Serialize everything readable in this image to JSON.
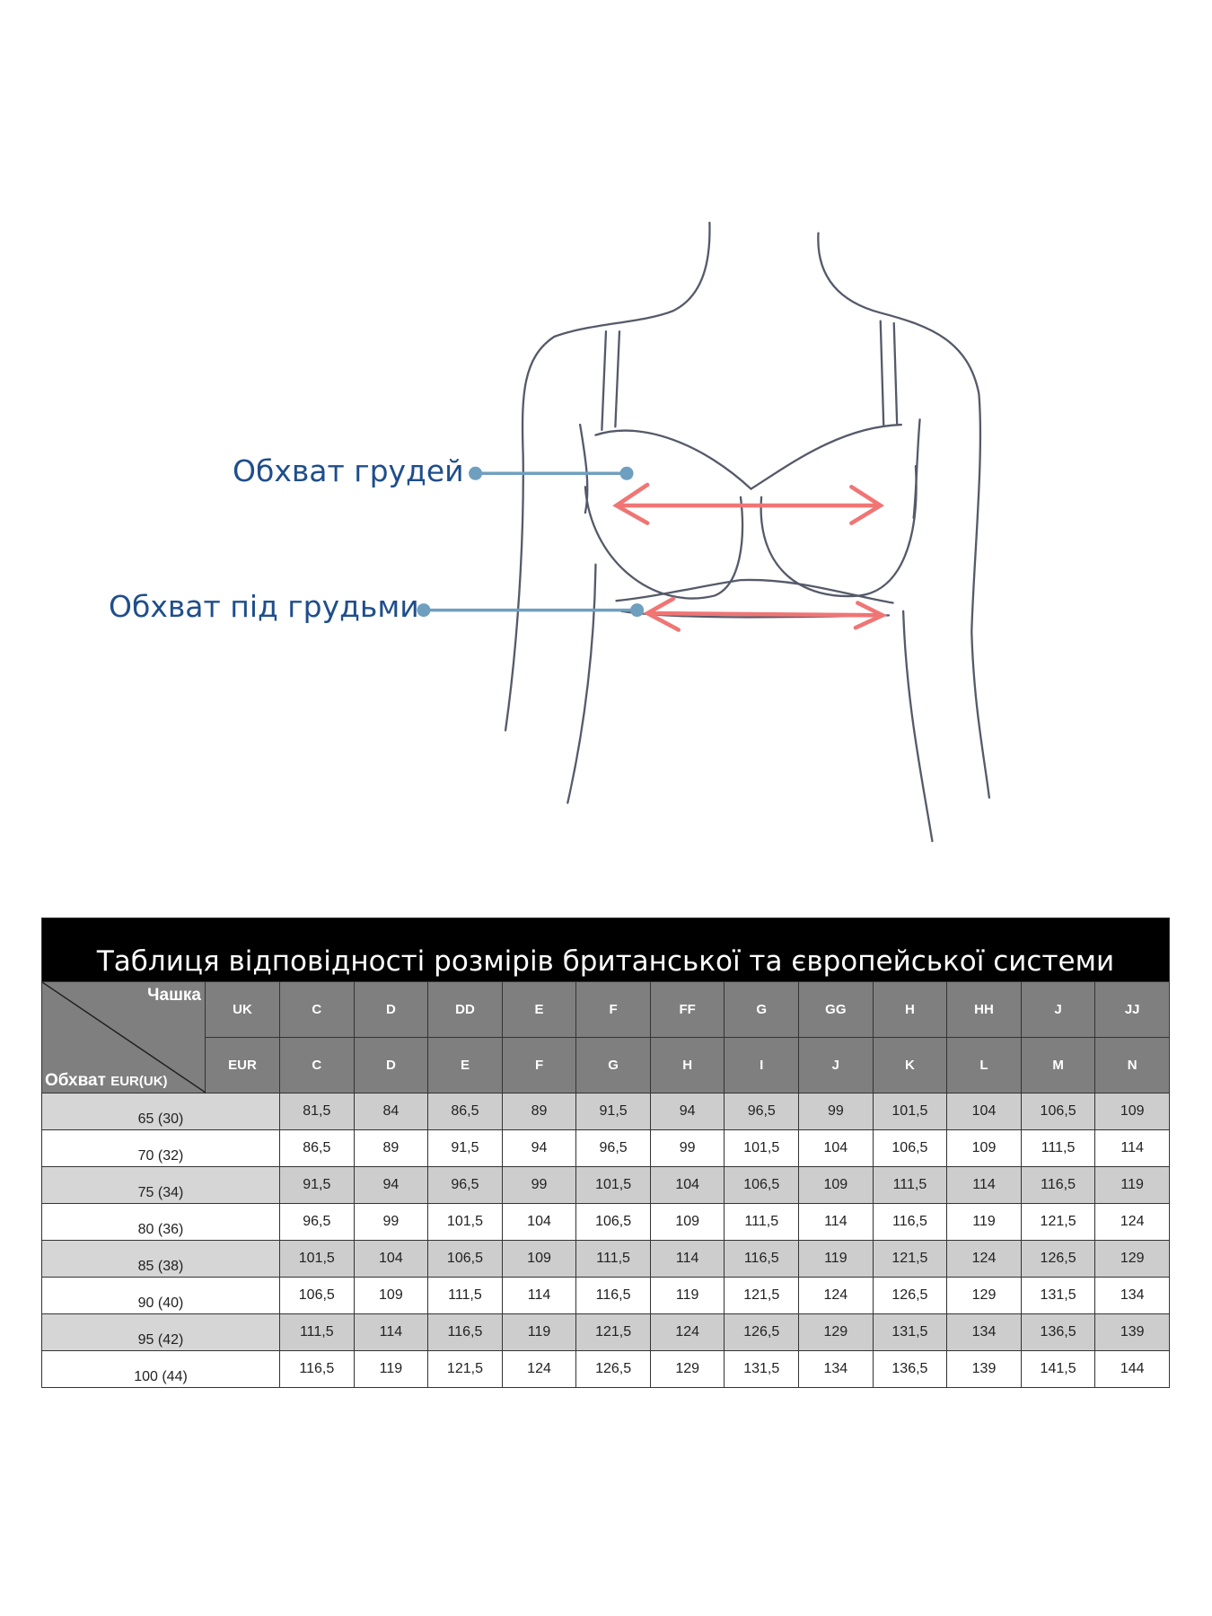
{
  "illustration": {
    "label_bust": "Обхват грудей",
    "label_underbust": "Обхват під грудьми",
    "label_color": "#1f4e8c",
    "pointer_color": "#6f9fbf",
    "arrow_color": "#f07575",
    "line_color": "#555a6a"
  },
  "table": {
    "title": "Таблиця відповідності розмірів британської та європейської системи",
    "corner_top": "Чашка",
    "corner_bottom": "Обхват",
    "corner_bottom_small": "EUR(UK)",
    "uk_label": "UK",
    "eur_label": "EUR",
    "uk_cups": [
      "C",
      "D",
      "DD",
      "E",
      "F",
      "FF",
      "G",
      "GG",
      "H",
      "HH",
      "J",
      "JJ"
    ],
    "eur_cups": [
      "C",
      "D",
      "E",
      "F",
      "G",
      "H",
      "I",
      "J",
      "K",
      "L",
      "M",
      "N"
    ],
    "rows": [
      {
        "band": "65 (30)",
        "values": [
          "81,5",
          "84",
          "86,5",
          "89",
          "91,5",
          "94",
          "96,5",
          "99",
          "101,5",
          "104",
          "106,5",
          "109"
        ]
      },
      {
        "band": "70 (32)",
        "values": [
          "86,5",
          "89",
          "91,5",
          "94",
          "96,5",
          "99",
          "101,5",
          "104",
          "106,5",
          "109",
          "111,5",
          "114"
        ]
      },
      {
        "band": "75 (34)",
        "values": [
          "91,5",
          "94",
          "96,5",
          "99",
          "101,5",
          "104",
          "106,5",
          "109",
          "111,5",
          "114",
          "116,5",
          "119"
        ]
      },
      {
        "band": "80 (36)",
        "values": [
          "96,5",
          "99",
          "101,5",
          "104",
          "106,5",
          "109",
          "111,5",
          "114",
          "116,5",
          "119",
          "121,5",
          "124"
        ]
      },
      {
        "band": "85 (38)",
        "values": [
          "101,5",
          "104",
          "106,5",
          "109",
          "111,5",
          "114",
          "116,5",
          "119",
          "121,5",
          "124",
          "126,5",
          "129"
        ]
      },
      {
        "band": "90 (40)",
        "values": [
          "106,5",
          "109",
          "111,5",
          "114",
          "116,5",
          "119",
          "121,5",
          "124",
          "126,5",
          "129",
          "131,5",
          "134"
        ]
      },
      {
        "band": "95 (42)",
        "values": [
          "111,5",
          "114",
          "116,5",
          "119",
          "121,5",
          "124",
          "126,5",
          "129",
          "131,5",
          "134",
          "136,5",
          "139"
        ]
      },
      {
        "band": "100 (44)",
        "values": [
          "116,5",
          "119",
          "121,5",
          "124",
          "126,5",
          "129",
          "131,5",
          "134",
          "136,5",
          "139",
          "141,5",
          "144"
        ]
      }
    ]
  }
}
